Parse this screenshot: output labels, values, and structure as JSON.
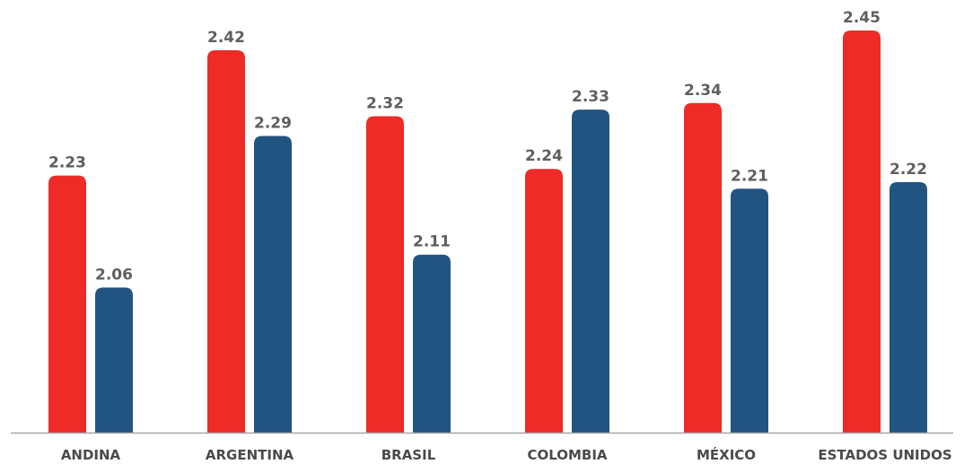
{
  "chart_data": {
    "type": "bar",
    "categories": [
      "ANDINA",
      "ARGENTINA",
      "BRASIL",
      "COLOMBIA",
      "MÉXICO",
      "ESTADOS UNIDOS"
    ],
    "series": [
      {
        "color": "#ee2b27",
        "values": [
          2.23,
          2.42,
          2.32,
          2.24,
          2.34,
          2.45
        ]
      },
      {
        "color": "#225482",
        "values": [
          2.06,
          2.29,
          2.11,
          2.33,
          2.21,
          2.22
        ]
      }
    ],
    "data_labels": [
      [
        "2.23",
        "2.42",
        "2.32",
        "2.24",
        "2.34",
        "2.45"
      ],
      [
        "2.06",
        "2.29",
        "2.11",
        "2.33",
        "2.21",
        "2.22"
      ]
    ],
    "title": "",
    "xlabel": "",
    "ylabel": "",
    "ylim": [
      0,
      2.45
    ],
    "grid": false,
    "legend": "none",
    "axis_color": "#a6a6a6"
  }
}
